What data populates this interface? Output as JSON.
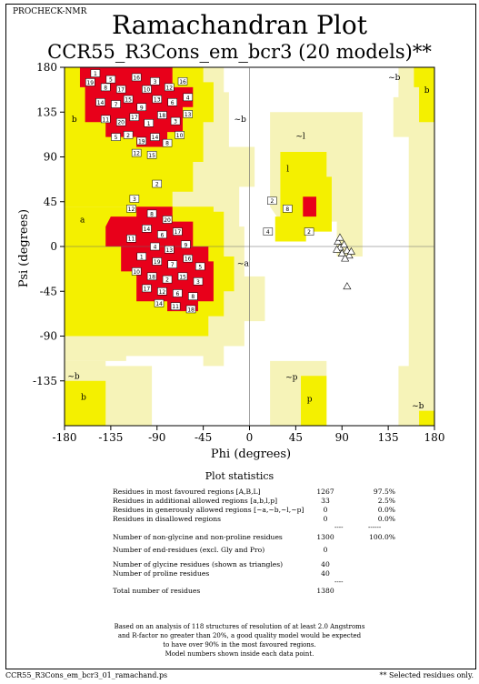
{
  "header": {
    "label": "PROCHECK-NMR"
  },
  "title": "Ramachandran Plot",
  "subtitle": "CCR55_R3Cons_em_bcr3 (20 models)**",
  "colors": {
    "core": "#e8001a",
    "allowed": "#f4f000",
    "generous": "#f6f3b8",
    "disallowed": "#ffffff",
    "glycine_marker": "#ffffff"
  },
  "chart_data": {
    "type": "scatter",
    "xlabel": "Phi (degrees)",
    "ylabel": "Psi (degrees)",
    "xlim": [
      -180,
      180
    ],
    "ylim": [
      -180,
      180
    ],
    "x_ticks": [
      "-180",
      "-135",
      "-90",
      "-45",
      "0",
      "45",
      "90",
      "135",
      "180"
    ],
    "y_ticks": [
      "180",
      "135",
      "90",
      "45",
      "0",
      "-45",
      "-90",
      "-135"
    ],
    "grid": false,
    "region_labels": [
      {
        "text": "b",
        "phi": -173,
        "psi": 128
      },
      {
        "text": "~b",
        "phi": -15,
        "psi": 128
      },
      {
        "text": "~b",
        "phi": 135,
        "psi": 170
      },
      {
        "text": "b",
        "phi": 170,
        "psi": 157
      },
      {
        "text": "~l",
        "phi": 45,
        "psi": 111
      },
      {
        "text": "l",
        "phi": 36,
        "psi": 78
      },
      {
        "text": "a",
        "phi": -165,
        "psi": 27
      },
      {
        "text": "~a",
        "phi": -12,
        "psi": -17
      },
      {
        "text": "~b",
        "phi": -177,
        "psi": -130
      },
      {
        "text": "b",
        "phi": -164,
        "psi": -151
      },
      {
        "text": "~p",
        "phi": 35,
        "psi": -131
      },
      {
        "text": "p",
        "phi": 56,
        "psi": -153
      },
      {
        "text": "~b",
        "phi": 158,
        "psi": -160
      }
    ],
    "glycine_points": [
      {
        "phi": 86,
        "psi": 5
      },
      {
        "phi": 88,
        "psi": -1
      },
      {
        "phi": 92,
        "psi": 2
      },
      {
        "phi": 95,
        "psi": -4
      },
      {
        "phi": 90,
        "psi": -7
      },
      {
        "phi": 97,
        "psi": -9
      },
      {
        "phi": 85,
        "psi": -3
      },
      {
        "phi": 93,
        "psi": -12
      },
      {
        "phi": 99,
        "psi": -5
      },
      {
        "phi": 88,
        "psi": 9
      },
      {
        "phi": 95,
        "psi": -40
      }
    ],
    "labelled_points": [
      {
        "phi": -150,
        "psi": 174,
        "label": "1"
      },
      {
        "phi": -155,
        "psi": 165,
        "label": "19"
      },
      {
        "phi": -140,
        "psi": 160,
        "label": "8"
      },
      {
        "phi": -125,
        "psi": 158,
        "label": "17"
      },
      {
        "phi": -135,
        "psi": 168,
        "label": "5"
      },
      {
        "phi": -110,
        "psi": 170,
        "label": "16"
      },
      {
        "phi": -100,
        "psi": 158,
        "label": "10"
      },
      {
        "phi": -92,
        "psi": 166,
        "label": "3"
      },
      {
        "phi": -78,
        "psi": 160,
        "label": "12"
      },
      {
        "phi": -65,
        "psi": 166,
        "label": "16"
      },
      {
        "phi": -145,
        "psi": 145,
        "label": "14"
      },
      {
        "phi": -130,
        "psi": 143,
        "label": "7"
      },
      {
        "phi": -118,
        "psi": 148,
        "label": "15"
      },
      {
        "phi": -105,
        "psi": 140,
        "label": "9"
      },
      {
        "phi": -90,
        "psi": 148,
        "label": "13"
      },
      {
        "phi": -75,
        "psi": 145,
        "label": "6"
      },
      {
        "phi": -60,
        "psi": 150,
        "label": "4"
      },
      {
        "phi": -140,
        "psi": 128,
        "label": "11"
      },
      {
        "phi": -125,
        "psi": 125,
        "label": "20"
      },
      {
        "phi": -112,
        "psi": 130,
        "label": "17"
      },
      {
        "phi": -98,
        "psi": 124,
        "label": "1"
      },
      {
        "phi": -85,
        "psi": 132,
        "label": "18"
      },
      {
        "phi": -72,
        "psi": 126,
        "label": "3"
      },
      {
        "phi": -60,
        "psi": 133,
        "label": "13"
      },
      {
        "phi": -130,
        "psi": 110,
        "label": "5"
      },
      {
        "phi": -118,
        "psi": 112,
        "label": "2"
      },
      {
        "phi": -105,
        "psi": 106,
        "label": "19"
      },
      {
        "phi": -92,
        "psi": 110,
        "label": "14"
      },
      {
        "phi": -80,
        "psi": 104,
        "label": "8"
      },
      {
        "phi": -68,
        "psi": 112,
        "label": "10"
      },
      {
        "phi": -110,
        "psi": 94,
        "label": "12"
      },
      {
        "phi": -95,
        "psi": 92,
        "label": "15"
      },
      {
        "phi": -90,
        "psi": 63,
        "label": "2"
      },
      {
        "phi": -112,
        "psi": 48,
        "label": "3"
      },
      {
        "phi": -115,
        "psi": 38,
        "label": "12"
      },
      {
        "phi": -95,
        "psi": 33,
        "label": "8"
      },
      {
        "phi": -80,
        "psi": 27,
        "label": "20"
      },
      {
        "phi": -100,
        "psi": 18,
        "label": "14"
      },
      {
        "phi": -85,
        "psi": 12,
        "label": "6"
      },
      {
        "phi": -70,
        "psi": 15,
        "label": "17"
      },
      {
        "phi": -115,
        "psi": 8,
        "label": "11"
      },
      {
        "phi": -92,
        "psi": 0,
        "label": "4"
      },
      {
        "phi": -78,
        "psi": -3,
        "label": "13"
      },
      {
        "phi": -62,
        "psi": 2,
        "label": "9"
      },
      {
        "phi": -105,
        "psi": -10,
        "label": "1"
      },
      {
        "phi": -90,
        "psi": -15,
        "label": "19"
      },
      {
        "phi": -75,
        "psi": -18,
        "label": "7"
      },
      {
        "phi": -60,
        "psi": -12,
        "label": "16"
      },
      {
        "phi": -48,
        "psi": -20,
        "label": "5"
      },
      {
        "phi": -110,
        "psi": -25,
        "label": "10"
      },
      {
        "phi": -95,
        "psi": -30,
        "label": "18"
      },
      {
        "phi": -80,
        "psi": -33,
        "label": "2"
      },
      {
        "phi": -65,
        "psi": -30,
        "label": "15"
      },
      {
        "phi": -50,
        "psi": -35,
        "label": "3"
      },
      {
        "phi": -100,
        "psi": -42,
        "label": "17"
      },
      {
        "phi": -85,
        "psi": -45,
        "label": "12"
      },
      {
        "phi": -70,
        "psi": -47,
        "label": "6"
      },
      {
        "phi": -55,
        "psi": -50,
        "label": "8"
      },
      {
        "phi": -88,
        "psi": -57,
        "label": "14"
      },
      {
        "phi": -72,
        "psi": -60,
        "label": "11"
      },
      {
        "phi": -57,
        "psi": -63,
        "label": "18"
      },
      {
        "phi": 18,
        "psi": 15,
        "label": "4"
      },
      {
        "phi": 58,
        "psi": 15,
        "label": "2"
      },
      {
        "phi": 22,
        "psi": 46,
        "label": "2"
      },
      {
        "phi": 37,
        "psi": 38,
        "label": "8"
      }
    ]
  },
  "stats": {
    "title": "Plot statistics",
    "rows": [
      {
        "label": "Residues in most favoured regions  [A,B,L]",
        "count": "1267",
        "pct": "97.5%"
      },
      {
        "label": "Residues in additional allowed regions  [a,b,l,p]",
        "count": "33",
        "pct": "2.5%"
      },
      {
        "label": "Residues in generously allowed regions  [~a,~b,~l,~p]",
        "count": "0",
        "pct": "0.0%"
      },
      {
        "label": "Residues in disallowed regions",
        "count": "0",
        "pct": "0.0%"
      },
      {
        "label": "Number of non-glycine and non-proline residues",
        "count": "1300",
        "pct": "100.0%"
      },
      {
        "label": "Number of end-residues (excl. Gly and Pro)",
        "count": "0",
        "pct": ""
      },
      {
        "label": "Number of glycine residues (shown as triangles)",
        "count": "40",
        "pct": ""
      },
      {
        "label": "Number of proline residues",
        "count": "40",
        "pct": ""
      },
      {
        "label": "Total number of residues",
        "count": "1380",
        "pct": ""
      }
    ],
    "separator_count": "----",
    "separator_pct": "------"
  },
  "note": [
    "Based on an analysis of 118 structures of resolution of at least 2.0 Angstroms",
    "and R-factor no greater than 20%, a good quality model would be expected",
    "to have over 90% in the most favoured regions.",
    "Model numbers shown inside each data point."
  ],
  "footer": {
    "left": "CCR55_R3Cons_em_bcr3_01_ramachand.ps",
    "right": "** Selected residues only."
  }
}
